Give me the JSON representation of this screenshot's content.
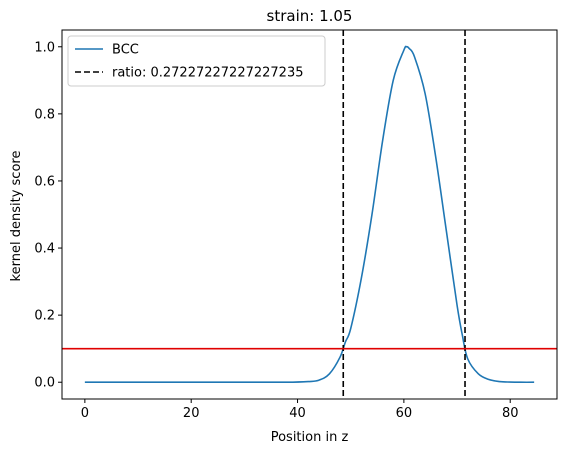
{
  "chart_data": {
    "type": "line",
    "title": "strain: 1.05",
    "xlabel": "Position in z",
    "ylabel": "kernel density score",
    "xlim": [
      -4.3,
      88.8
    ],
    "ylim": [
      -0.05,
      1.05
    ],
    "xticks": [
      0,
      20,
      40,
      60,
      80
    ],
    "yticks": [
      0.0,
      0.2,
      0.4,
      0.6,
      0.8,
      1.0
    ],
    "xtick_labels": [
      "0",
      "20",
      "40",
      "60",
      "80"
    ],
    "ytick_labels": [
      "0.0",
      "0.2",
      "0.4",
      "0.6",
      "0.8",
      "1.0"
    ],
    "grid": false,
    "legend": {
      "position": "top-left",
      "entries": [
        {
          "label": "BCC",
          "color": "#1f77b4",
          "style": "solid"
        },
        {
          "label": "ratio: 0.27227227227227235",
          "color": "#000000",
          "style": "dashed"
        }
      ]
    },
    "series": [
      {
        "name": "BCC",
        "color": "#1f77b4",
        "x": [
          0,
          10,
          20,
          30,
          38,
          42,
          44,
          46,
          48,
          49,
          50,
          52,
          54,
          56,
          58,
          60,
          60.5,
          61,
          62,
          64,
          66,
          68,
          70,
          71,
          72,
          74,
          76,
          78,
          80,
          82,
          84.5
        ],
        "y": [
          0,
          0,
          0,
          0,
          0,
          0.002,
          0.006,
          0.025,
          0.075,
          0.12,
          0.16,
          0.31,
          0.5,
          0.72,
          0.9,
          0.99,
          1.0,
          0.995,
          0.97,
          0.86,
          0.67,
          0.45,
          0.23,
          0.14,
          0.07,
          0.025,
          0.008,
          0.002,
          0.0005,
          0,
          0
        ]
      }
    ],
    "vlines": [
      {
        "x": 48.6,
        "color": "#000000",
        "style": "dashed"
      },
      {
        "x": 71.5,
        "color": "#000000",
        "style": "dashed"
      }
    ],
    "hlines": [
      {
        "y": 0.1,
        "color": "#e00000",
        "style": "solid"
      }
    ]
  }
}
